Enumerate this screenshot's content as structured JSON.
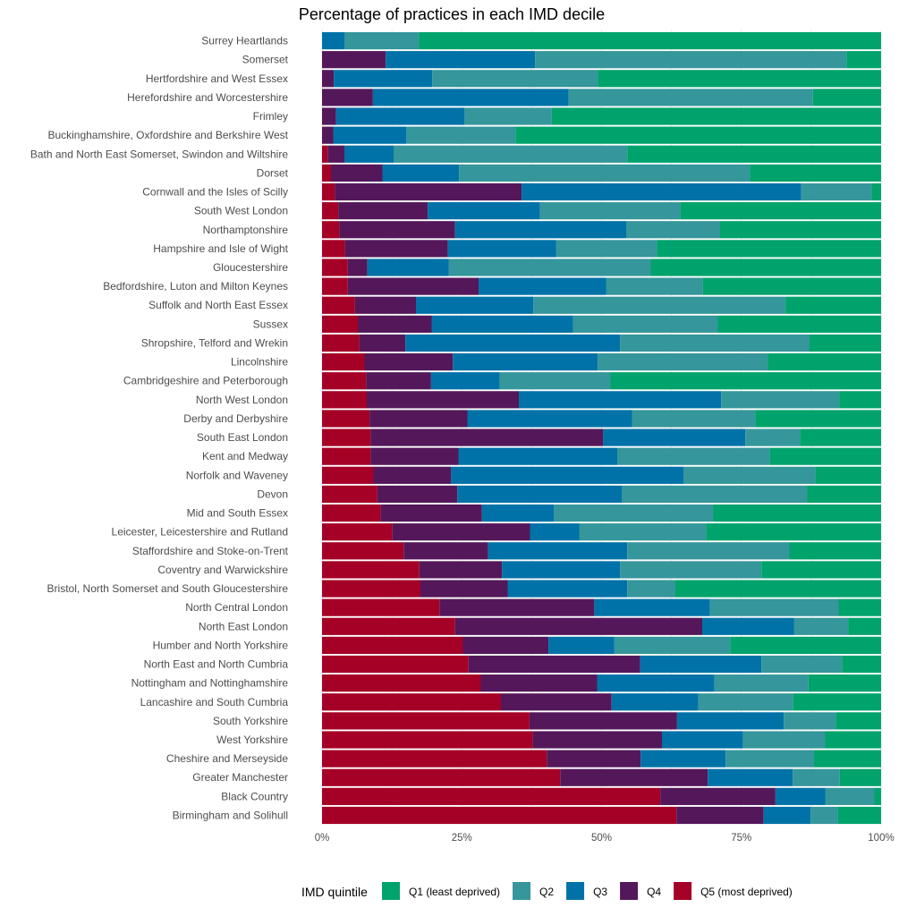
{
  "chart_data": {
    "type": "bar",
    "orientation": "horizontal",
    "stacked": "percent",
    "title": "Percentage of practices in each IMD decile",
    "xlabel": "",
    "ylabel": "",
    "xlim": [
      0,
      1
    ],
    "x_ticks": [
      "0%",
      "25%",
      "50%",
      "75%",
      "100%"
    ],
    "x_tick_values": [
      0,
      0.25,
      0.5,
      0.75,
      1.0
    ],
    "grid": true,
    "legend": {
      "title": "IMD quintile",
      "position": "bottom"
    },
    "categories": [
      "Surrey Heartlands",
      "Somerset",
      "Hertfordshire and West Essex",
      "Herefordshire and Worcestershire",
      "Frimley",
      "Buckinghamshire, Oxfordshire and Berkshire West",
      "Bath and North East Somerset, Swindon and Wiltshire",
      "Dorset",
      "Cornwall and the Isles of Scilly",
      "South West London",
      "Northamptonshire",
      "Hampshire and Isle of Wight",
      "Gloucestershire",
      "Bedfordshire, Luton and Milton Keynes",
      "Suffolk and North East Essex",
      "Sussex",
      "Shropshire, Telford and Wrekin",
      "Lincolnshire",
      "Cambridgeshire and Peterborough",
      "North West London",
      "Derby and Derbyshire",
      "South East London",
      "Kent and Medway",
      "Norfolk and Waveney",
      "Devon",
      "Mid and South Essex",
      "Leicester, Leicestershire and Rutland",
      "Staffordshire and Stoke-on-Trent",
      "Coventry and Warwickshire",
      "Bristol, North Somerset and South Gloucestershire",
      "North Central London",
      "North East London",
      "Humber and North Yorkshire",
      "North East and North Cumbria",
      "Nottingham and Nottinghamshire",
      "Lancashire and South Cumbria",
      "South Yorkshire",
      "West Yorkshire",
      "Cheshire and Merseyside",
      "Greater Manchester",
      "Black Country",
      "Birmingham and Solihull"
    ],
    "series": [
      {
        "name": "Q5 (most deprived)",
        "color": "#a50026",
        "values": [
          0.0,
          0.0,
          0.0,
          0.0,
          0.0,
          0.0,
          0.01,
          0.016,
          0.023,
          0.029,
          0.031,
          0.041,
          0.046,
          0.046,
          0.059,
          0.064,
          0.067,
          0.076,
          0.079,
          0.08,
          0.085,
          0.087,
          0.087,
          0.092,
          0.099,
          0.105,
          0.126,
          0.146,
          0.174,
          0.176,
          0.21,
          0.238,
          0.252,
          0.262,
          0.284,
          0.32,
          0.371,
          0.377,
          0.402,
          0.426,
          0.605,
          0.634
        ]
      },
      {
        "name": "Q4",
        "color": "#54185a",
        "values": [
          0.0,
          0.114,
          0.021,
          0.091,
          0.025,
          0.02,
          0.03,
          0.092,
          0.334,
          0.16,
          0.207,
          0.184,
          0.035,
          0.234,
          0.109,
          0.132,
          0.082,
          0.158,
          0.116,
          0.272,
          0.175,
          0.416,
          0.157,
          0.139,
          0.143,
          0.181,
          0.246,
          0.151,
          0.148,
          0.156,
          0.277,
          0.442,
          0.153,
          0.307,
          0.208,
          0.198,
          0.264,
          0.231,
          0.168,
          0.264,
          0.206,
          0.156
        ]
      },
      {
        "name": "Q3",
        "color": "#0072a8",
        "values": [
          0.04,
          0.267,
          0.176,
          0.35,
          0.23,
          0.131,
          0.088,
          0.137,
          0.5,
          0.201,
          0.306,
          0.194,
          0.146,
          0.228,
          0.21,
          0.253,
          0.384,
          0.259,
          0.123,
          0.362,
          0.295,
          0.254,
          0.284,
          0.416,
          0.294,
          0.129,
          0.088,
          0.249,
          0.211,
          0.214,
          0.207,
          0.164,
          0.118,
          0.217,
          0.21,
          0.155,
          0.191,
          0.145,
          0.152,
          0.152,
          0.089,
          0.084
        ]
      },
      {
        "name": "Q2",
        "color": "#35969b",
        "values": [
          0.133,
          0.557,
          0.296,
          0.437,
          0.156,
          0.195,
          0.418,
          0.52,
          0.126,
          0.251,
          0.168,
          0.18,
          0.361,
          0.173,
          0.451,
          0.259,
          0.339,
          0.304,
          0.198,
          0.211,
          0.22,
          0.098,
          0.273,
          0.235,
          0.332,
          0.285,
          0.227,
          0.29,
          0.253,
          0.086,
          0.23,
          0.097,
          0.207,
          0.144,
          0.168,
          0.169,
          0.093,
          0.147,
          0.158,
          0.084,
          0.088,
          0.048
        ]
      },
      {
        "name": "Q1 (least deprived)",
        "color": "#00a36c",
        "values": [
          0.827,
          0.062,
          0.507,
          0.122,
          0.589,
          0.654,
          0.454,
          0.235,
          0.017,
          0.359,
          0.288,
          0.401,
          0.412,
          0.319,
          0.171,
          0.292,
          0.128,
          0.203,
          0.484,
          0.075,
          0.225,
          0.145,
          0.199,
          0.118,
          0.132,
          0.3,
          0.313,
          0.164,
          0.214,
          0.368,
          0.076,
          0.059,
          0.27,
          0.07,
          0.13,
          0.158,
          0.081,
          0.1,
          0.12,
          0.074,
          0.012,
          0.078
        ]
      }
    ]
  }
}
